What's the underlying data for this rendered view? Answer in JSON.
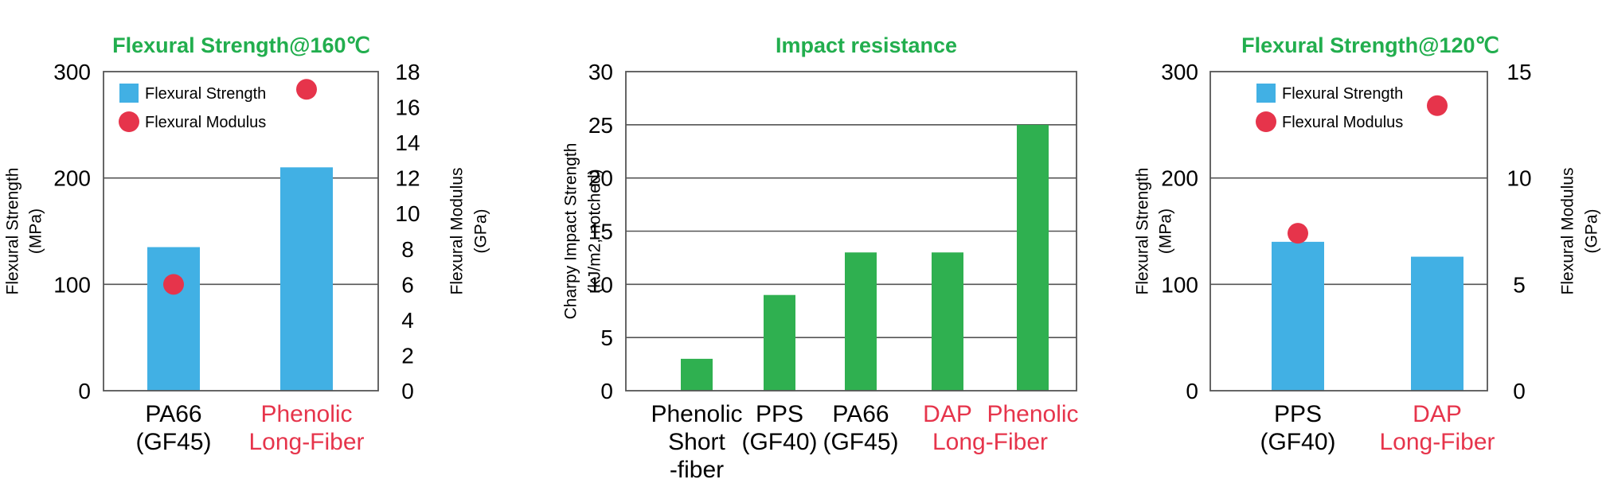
{
  "colors": {
    "title": "#22ae4e",
    "bar_blue": "#41b0e4",
    "bar_green": "#2fb050",
    "dot_red": "#e6344b",
    "highlight_red": "#e6344b",
    "text": "#000000",
    "grid": "#555555"
  },
  "chart_data": [
    {
      "type": "bar",
      "title": "Flexural Strength@160℃",
      "categories": [
        {
          "lines": [
            "PA66",
            "(GF45)"
          ],
          "highlight": false
        },
        {
          "lines": [
            "Phenolic",
            "Long-Fiber"
          ],
          "highlight": true
        }
      ],
      "series": [
        {
          "name": "Flexural Strength",
          "kind": "bar",
          "axis": "left",
          "values": [
            135,
            210
          ]
        },
        {
          "name": "Flexural Modulus",
          "kind": "dot",
          "axis": "right",
          "values": [
            6,
            17
          ]
        }
      ],
      "ylabel": [
        "Flexural Strength",
        "(MPa)"
      ],
      "ylim": [
        0,
        300
      ],
      "yticks": [
        0,
        100,
        200,
        300
      ],
      "y2label": [
        "Flexural Modulus",
        "(GPa)"
      ],
      "y2lim": [
        0,
        18
      ],
      "y2ticks": [
        0,
        2,
        4,
        6,
        8,
        10,
        12,
        14,
        16,
        18
      ],
      "grid": true,
      "legend": "top-left"
    },
    {
      "type": "bar",
      "title": "Impact resistance",
      "categories": [
        {
          "lines": [
            "Phenolic",
            "Short",
            "-fiber"
          ],
          "highlight": false
        },
        {
          "lines": [
            "PPS",
            "(GF40)"
          ],
          "highlight": false
        },
        {
          "lines": [
            "PA66",
            "(GF45)"
          ],
          "highlight": false
        },
        {
          "lines": [
            "DAP"
          ],
          "highlight": true
        },
        {
          "lines": [
            "Phenolic"
          ],
          "highlight": true
        }
      ],
      "group_label": {
        "lines": [
          "Long-Fiber"
        ],
        "highlight": true
      },
      "series": [
        {
          "kind": "bar",
          "axis": "left",
          "values": [
            3,
            9,
            13,
            13,
            25
          ]
        }
      ],
      "ylabel": [
        "Charpy Impact Strength",
        "(kJ/m2, notched)"
      ],
      "ylim": [
        0,
        30
      ],
      "yticks": [
        0,
        5,
        10,
        15,
        20,
        25,
        30
      ],
      "grid": true
    },
    {
      "type": "bar",
      "title": "Flexural Strength@120℃",
      "categories": [
        {
          "lines": [
            "PPS",
            "(GF40)"
          ],
          "highlight": false
        },
        {
          "lines": [
            "DAP",
            "Long-Fiber"
          ],
          "highlight": true
        }
      ],
      "series": [
        {
          "name": "Flexural Strength",
          "kind": "bar",
          "axis": "left",
          "values": [
            140,
            126
          ]
        },
        {
          "name": "Flexural Modulus",
          "kind": "dot",
          "axis": "right",
          "values": [
            7.4,
            13.4
          ]
        }
      ],
      "ylabel": [
        "Flexural Strength",
        "(MPa)"
      ],
      "ylim": [
        0,
        300
      ],
      "yticks": [
        0,
        100,
        200,
        300
      ],
      "y2label": [
        "Flexural Modulus",
        "(GPa)"
      ],
      "y2lim": [
        0,
        15
      ],
      "y2ticks": [
        0,
        5,
        10,
        15
      ],
      "grid": true,
      "legend": "top-left"
    }
  ]
}
